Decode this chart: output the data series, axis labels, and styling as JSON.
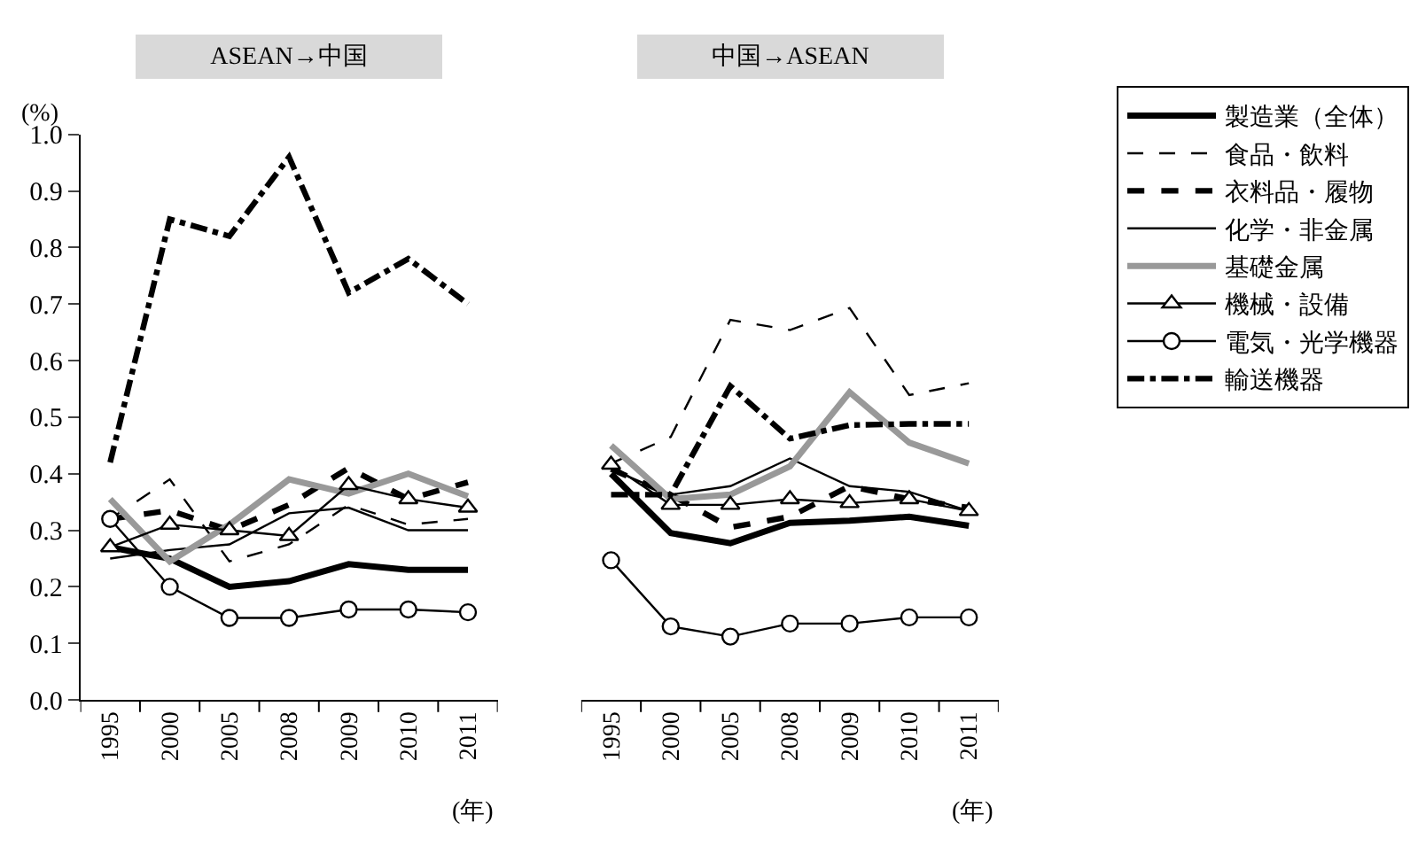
{
  "chart_data": [
    {
      "type": "line",
      "title": "ASEAN→中国",
      "ylabel": "(%)",
      "xlabel": "(年)",
      "categories": [
        "1995",
        "2000",
        "2005",
        "2008",
        "2009",
        "2010",
        "2011"
      ],
      "ylim": [
        0,
        1
      ],
      "yticks": [
        {
          "value": 0,
          "label": "0.0"
        },
        0.1,
        0.2,
        0.3,
        0.4,
        0.5,
        0.6,
        0.7,
        0.8,
        0.9,
        {
          "value": 1,
          "label": "1.0"
        }
      ],
      "grid": false,
      "legend": "right",
      "series": [
        {
          "name": "製造業（全体）",
          "color": "#000000",
          "line_style": "solid",
          "marker": "none",
          "values": [
            0.27,
            0.25,
            0.2,
            0.21,
            0.24,
            0.23,
            0.23
          ]
        },
        {
          "name": "食品・飲料",
          "color": "#000000",
          "line_style": "dashed",
          "marker": "none",
          "values": [
            0.32,
            0.39,
            0.245,
            0.275,
            0.345,
            0.31,
            0.32
          ]
        },
        {
          "name": "衣料品・履物",
          "color": "#000000",
          "line_style": "dashed",
          "marker": "none",
          "values": [
            0.32,
            0.335,
            0.3,
            0.345,
            0.41,
            0.355,
            0.385
          ]
        },
        {
          "name": "化学・非金属",
          "color": "#000000",
          "line_style": "solid",
          "marker": "none",
          "values": [
            0.25,
            0.265,
            0.275,
            0.33,
            0.34,
            0.3,
            0.3
          ]
        },
        {
          "name": "基礎金属",
          "color": "#999999",
          "line_style": "solid",
          "marker": "none",
          "values": [
            0.355,
            0.245,
            0.31,
            0.39,
            0.365,
            0.4,
            0.36
          ]
        },
        {
          "name": "機械・設備",
          "color": "#000000",
          "line_style": "solid",
          "marker": "triangle",
          "values": [
            0.27,
            0.31,
            0.3,
            0.29,
            0.38,
            0.355,
            0.34
          ]
        },
        {
          "name": "電気・光学機器",
          "color": "#000000",
          "line_style": "solid",
          "marker": "circle",
          "values": [
            0.32,
            0.2,
            0.145,
            0.145,
            0.16,
            0.16,
            0.155
          ]
        },
        {
          "name": "輸送機器",
          "color": "#000000",
          "line_style": "dashdot",
          "marker": "none",
          "values": [
            0.42,
            0.85,
            0.82,
            0.96,
            0.72,
            0.78,
            0.7
          ]
        }
      ]
    },
    {
      "type": "line",
      "title": "中国→ASEAN",
      "xlabel": "(年)",
      "categories": [
        "1995",
        "2000",
        "2005",
        "2008",
        "2009",
        "2010",
        "2011"
      ],
      "ylim": [
        0,
        1
      ],
      "tick_labels": "x",
      "grid": false,
      "series": [
        {
          "color": "#000000",
          "line_style": "solid",
          "marker": "none",
          "values": [
            0.4,
            0.295,
            0.277,
            0.313,
            0.317,
            0.324,
            0.308
          ]
        },
        {
          "color": "#000000",
          "line_style": "dashed",
          "marker": "none",
          "values": [
            0.418,
            0.465,
            0.672,
            0.654,
            0.693,
            0.539,
            0.56
          ]
        },
        {
          "color": "#000000",
          "line_style": "dashed",
          "marker": "none",
          "values": [
            0.408,
            0.363,
            0.305,
            0.324,
            0.378,
            0.355,
            0.34
          ]
        },
        {
          "color": "#000000",
          "line_style": "solid",
          "marker": "none",
          "values": [
            0.408,
            0.363,
            0.378,
            0.427,
            0.378,
            0.368,
            0.334
          ]
        },
        {
          "color": "#999999",
          "line_style": "solid",
          "marker": "none",
          "values": [
            0.45,
            0.355,
            0.363,
            0.413,
            0.544,
            0.455,
            0.418
          ]
        },
        {
          "color": "#000000",
          "line_style": "solid",
          "marker": "triangle",
          "values": [
            0.416,
            0.345,
            0.345,
            0.355,
            0.348,
            0.355,
            0.334
          ]
        },
        {
          "color": "#000000",
          "line_style": "solid",
          "marker": "circle",
          "values": [
            0.247,
            0.13,
            0.112,
            0.135,
            0.135,
            0.146,
            0.146
          ]
        },
        {
          "color": "#000000",
          "line_style": "dashdot",
          "marker": "none",
          "values": [
            0.363,
            0.363,
            0.555,
            0.462,
            0.486,
            0.488,
            0.488
          ]
        }
      ]
    }
  ]
}
